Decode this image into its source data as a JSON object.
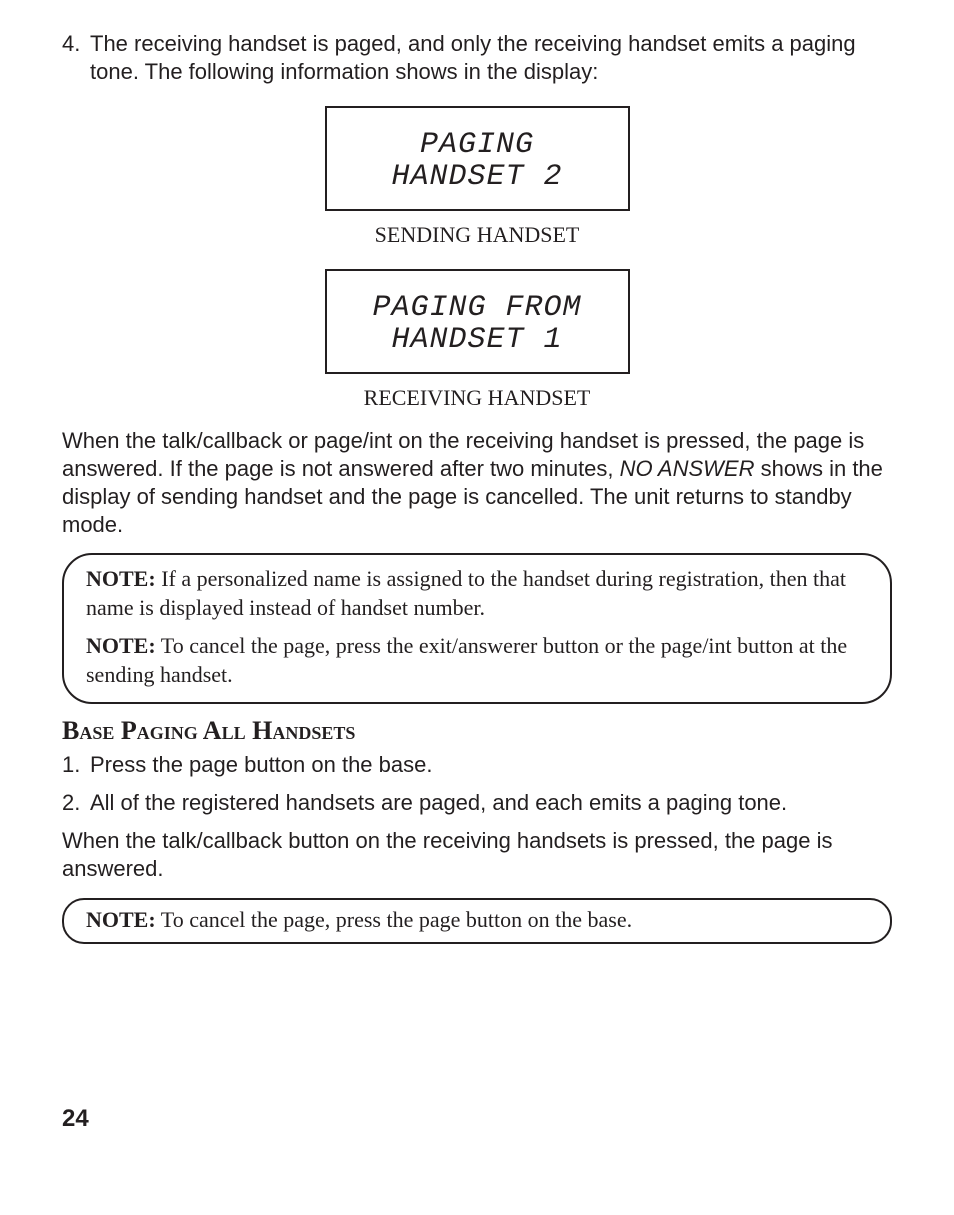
{
  "step4": {
    "num": "4.",
    "text": "The receiving handset is paged, and only the receiving handset emits a paging tone. The following information shows in the display:"
  },
  "sending_display": {
    "line1": "PAGING",
    "line2": "HANDSET 2",
    "caption": "SENDING HANDSET"
  },
  "receiving_display": {
    "line1": "PAGING FROM",
    "line2": "HANDSET 1",
    "caption": "RECEIVING HANDSET"
  },
  "para_answered_prefix": "When the talk/callback or page/int on the receiving handset is pressed, the page is answered. If the page is not answered after two minutes, ",
  "para_answered_ital": "NO ANSWER",
  "para_answered_suffix": " shows in the display of sending handset and the page is cancelled. The unit returns to standby mode.",
  "note1": {
    "label1": "NOTE:",
    "text1": " If a personalized name is assigned to the handset during registration, then that name is displayed instead of handset number.",
    "label2": "NOTE:",
    "text2": " To cancel the page, press the exit/answerer button or the page/int button at the sending handset."
  },
  "section_heading": "Base Paging All Handsets",
  "step1": {
    "num": "1.",
    "text": "Press the page button on the base."
  },
  "step2": {
    "num": "2.",
    "text": "All of the registered handsets are paged, and each emits a paging tone."
  },
  "para_base_answered": "When the talk/callback button on the receiving handsets is pressed, the page is answered.",
  "note2": {
    "label": "NOTE:",
    "text": " To cancel the page, press the page button on the base."
  },
  "page_number": "24"
}
